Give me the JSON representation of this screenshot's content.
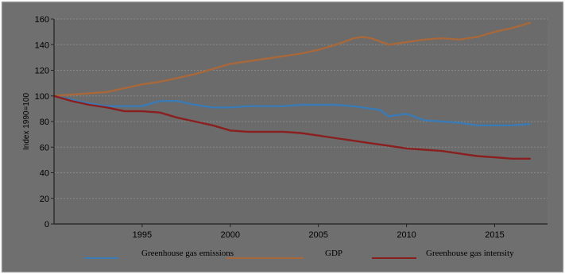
{
  "chart_data": {
    "type": "line",
    "title": "",
    "xlabel": "",
    "ylabel": "Index 1990=100",
    "xlim": [
      1990,
      2018
    ],
    "ylim": [
      0,
      160
    ],
    "yticks": [
      0,
      20,
      40,
      60,
      80,
      100,
      120,
      140,
      160
    ],
    "xticks": [
      1995,
      2000,
      2005,
      2010,
      2015
    ],
    "grid": "horizontal dashed",
    "legend_position": "bottom",
    "colors": {
      "frame_bg": "#6f6f6f",
      "plot_bg": "#6b6b6b",
      "gridline": "#8a8a8a",
      "axis": "#222222"
    },
    "series": [
      {
        "name": "Greenhouse gas emissions",
        "color": "#3a7ab5",
        "x": [
          1990,
          1991,
          1992,
          1993,
          1994,
          1995,
          1996,
          1997,
          1998,
          1999,
          2000,
          2001,
          2002,
          2003,
          2004,
          2005,
          2006,
          2007,
          2008,
          2008.5,
          2009,
          2010,
          2011,
          2012,
          2013,
          2014,
          2015,
          2016,
          2017
        ],
        "values": [
          100,
          97,
          94,
          92,
          92,
          92,
          96,
          96,
          93,
          91,
          91,
          92,
          92,
          92,
          93,
          93,
          93,
          92,
          90,
          89,
          84,
          86,
          81,
          80,
          79,
          77,
          77,
          77,
          78
        ]
      },
      {
        "name": "GDP",
        "color": "#a8683a",
        "x": [
          1990,
          1991,
          1992,
          1993,
          1994,
          1995,
          1996,
          1997,
          1998,
          1999,
          2000,
          2001,
          2002,
          2003,
          2004,
          2005,
          2006,
          2007,
          2007.5,
          2008,
          2009,
          2010,
          2011,
          2012,
          2013,
          2014,
          2015,
          2016,
          2017
        ],
        "values": [
          100,
          101,
          102,
          103,
          106,
          109,
          111,
          114,
          117,
          121,
          125,
          127,
          129,
          131,
          133,
          136,
          140,
          145,
          146,
          145,
          140,
          142,
          144,
          145,
          144,
          146,
          150,
          153,
          157
        ]
      },
      {
        "name": "Greenhouse gas intensity",
        "color": "#8a1f1f",
        "x": [
          1990,
          1991,
          1992,
          1993,
          1994,
          1995,
          1996,
          1997,
          1998,
          1999,
          2000,
          2001,
          2002,
          2003,
          2004,
          2005,
          2006,
          2007,
          2008,
          2009,
          2010,
          2011,
          2012,
          2013,
          2014,
          2015,
          2016,
          2017
        ],
        "values": [
          100,
          96,
          93,
          91,
          88,
          88,
          87,
          83,
          80,
          77,
          73,
          72,
          72,
          72,
          71,
          69,
          67,
          65,
          63,
          61,
          59,
          58,
          57,
          55,
          53,
          52,
          51,
          51
        ]
      }
    ]
  }
}
